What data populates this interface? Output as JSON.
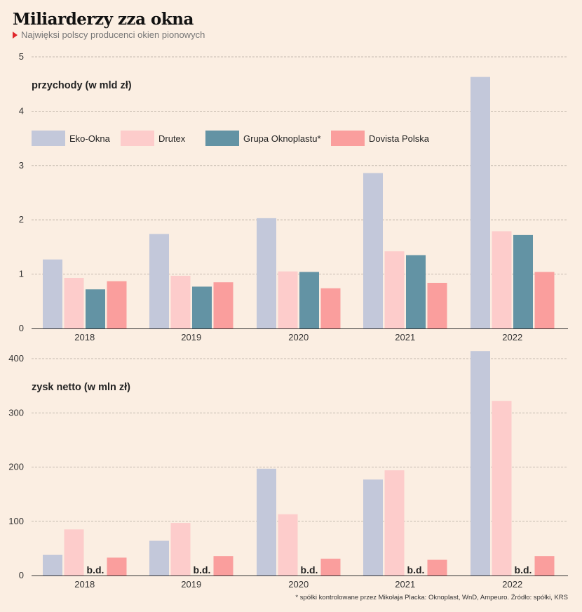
{
  "title": "Miliarderzy zza okna",
  "subtitle": "Najwięksi polscy producenci okien pionowych",
  "footnote": "* spółki kontrolowane przez Mikołaja Placka: Oknoplast, WnD, Ampeuro. Źródło: spółki, KRS",
  "colors": {
    "Eko-Okna": "#c3c8da",
    "Drutex": "#fdcccb",
    "Grupa Oknoplastu*": "#6393a4",
    "Dovista Polska": "#fa9e9d"
  },
  "chart_data": [
    {
      "type": "bar",
      "title": "przychody (w mld zł)",
      "categories": [
        "2018",
        "2019",
        "2020",
        "2021",
        "2022"
      ],
      "ylim": [
        0,
        5
      ],
      "yticks": [
        0,
        1,
        2,
        3,
        4,
        5
      ],
      "grid": true,
      "legend": "top-left",
      "series": [
        {
          "name": "Eko-Okna",
          "values": [
            1.27,
            1.74,
            2.03,
            2.86,
            4.63
          ]
        },
        {
          "name": "Drutex",
          "values": [
            0.93,
            0.97,
            1.05,
            1.42,
            1.79
          ]
        },
        {
          "name": "Grupa Oknoplastu*",
          "values": [
            0.72,
            0.77,
            1.04,
            1.35,
            1.72
          ]
        },
        {
          "name": "Dovista Polska",
          "values": [
            0.87,
            0.85,
            0.74,
            0.84,
            1.04
          ]
        }
      ]
    },
    {
      "type": "bar",
      "title": "zysk netto (w mln zł)",
      "categories": [
        "2018",
        "2019",
        "2020",
        "2021",
        "2022"
      ],
      "ylim": [
        0,
        400
      ],
      "yticks": [
        0,
        100,
        200,
        300,
        400
      ],
      "grid": true,
      "missing_label": "b.d.",
      "series": [
        {
          "name": "Eko-Okna",
          "values": [
            38,
            64,
            197,
            177,
            414
          ]
        },
        {
          "name": "Drutex",
          "values": [
            85,
            97,
            113,
            194,
            322
          ]
        },
        {
          "name": "Grupa Oknoplastu*",
          "values": [
            null,
            null,
            null,
            null,
            null
          ]
        },
        {
          "name": "Dovista Polska",
          "values": [
            33,
            36,
            31,
            29,
            36
          ]
        }
      ]
    }
  ]
}
